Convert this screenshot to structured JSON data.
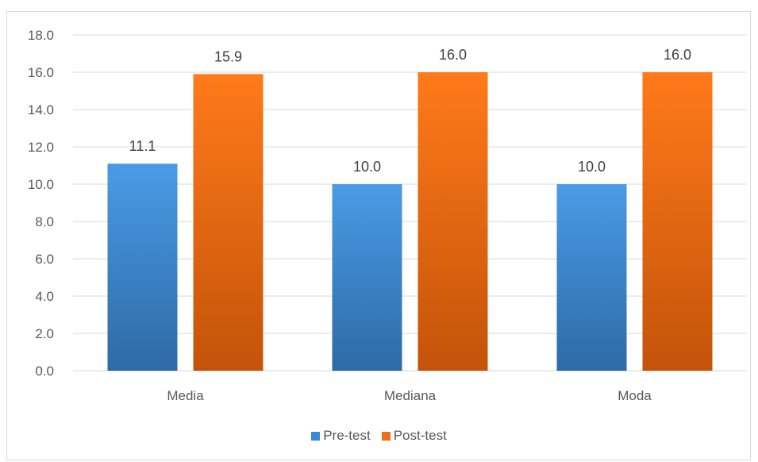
{
  "chart_data": {
    "type": "bar",
    "categories": [
      "Media",
      "Mediana",
      "Moda"
    ],
    "series": [
      {
        "name": "Pre-test",
        "values": [
          11.1,
          10.0,
          10.0
        ],
        "color": "#3a7dc4"
      },
      {
        "name": "Post-test",
        "values": [
          15.9,
          16.0,
          16.0
        ],
        "color": "#e2640f"
      }
    ],
    "data_labels": [
      [
        "11.1",
        "10.0",
        "10.0"
      ],
      [
        "15.9",
        "16.0",
        "16.0"
      ]
    ],
    "y_ticks": [
      "0.0",
      "2.0",
      "4.0",
      "6.0",
      "8.0",
      "10.0",
      "12.0",
      "14.0",
      "16.0",
      "18.0"
    ],
    "ylim": [
      0,
      18
    ],
    "grid": true,
    "legend_position": "bottom"
  }
}
